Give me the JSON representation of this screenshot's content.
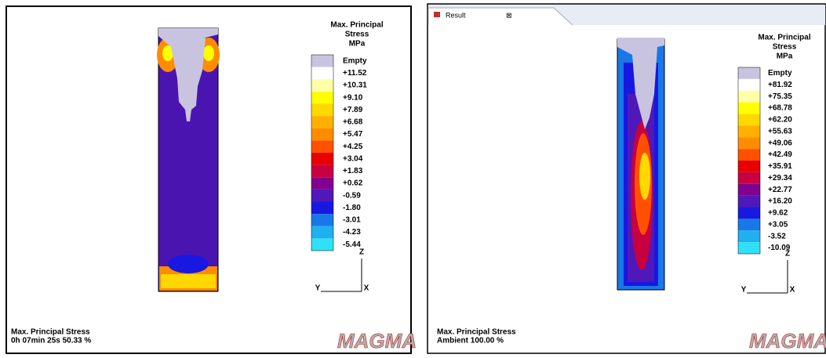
{
  "panels": [
    {
      "legend": {
        "title": [
          "Max. Principal",
          "Stress",
          "MPa"
        ],
        "entries": [
          {
            "label": "Empty",
            "color": "#c8c4e0"
          },
          {
            "label": "+11.52",
            "color": "#ffffff"
          },
          {
            "label": "+10.31",
            "color": "#ffffa8"
          },
          {
            "label": "+9.10",
            "color": "#ffff00"
          },
          {
            "label": "+7.89",
            "color": "#ffd800"
          },
          {
            "label": "+6.68",
            "color": "#ffb000"
          },
          {
            "label": "+5.47",
            "color": "#ff8c00"
          },
          {
            "label": "+4.25",
            "color": "#ff5000"
          },
          {
            "label": "+3.04",
            "color": "#e80000"
          },
          {
            "label": "+1.83",
            "color": "#c80040"
          },
          {
            "label": "+0.62",
            "color": "#800090"
          },
          {
            "label": "-0.59",
            "color": "#5018b8"
          },
          {
            "label": "-1.80",
            "color": "#1818e0"
          },
          {
            "label": "-3.01",
            "color": "#1878e8"
          },
          {
            "label": "-4.23",
            "color": "#20b0f0"
          },
          {
            "label": "-5.44",
            "color": "#30e0f8"
          }
        ]
      },
      "axes": {
        "z": "Z",
        "y": "Y",
        "x": "X"
      },
      "footer": [
        "Max. Principal Stress",
        "0h 07min 25s 50.33 %"
      ],
      "logo": "MAGMA"
    },
    {
      "tab": "Result",
      "legend": {
        "title": [
          "Max. Principal",
          "Stress",
          "MPa"
        ],
        "entries": [
          {
            "label": "Empty",
            "color": "#c8c4e0"
          },
          {
            "label": "+81.92",
            "color": "#ffffff"
          },
          {
            "label": "+75.35",
            "color": "#ffffa8"
          },
          {
            "label": "+68.78",
            "color": "#ffff00"
          },
          {
            "label": "+62.20",
            "color": "#ffd800"
          },
          {
            "label": "+55.63",
            "color": "#ffb000"
          },
          {
            "label": "+49.06",
            "color": "#ff8c00"
          },
          {
            "label": "+42.49",
            "color": "#ff5000"
          },
          {
            "label": "+35.91",
            "color": "#e80000"
          },
          {
            "label": "+29.34",
            "color": "#c80040"
          },
          {
            "label": "+22.77",
            "color": "#800090"
          },
          {
            "label": "+16.20",
            "color": "#5018b8"
          },
          {
            "label": "+9.62",
            "color": "#1818e0"
          },
          {
            "label": "+3.05",
            "color": "#1878e8"
          },
          {
            "label": "-3.52",
            "color": "#20b0f0"
          },
          {
            "label": "-10.09",
            "color": "#30e0f8"
          }
        ]
      },
      "axes": {
        "z": "Z",
        "y": "Y",
        "x": "X"
      },
      "footer": [
        "Max. Principal Stress",
        "Ambient 100.00 %"
      ],
      "logo": "MAGMA"
    }
  ]
}
